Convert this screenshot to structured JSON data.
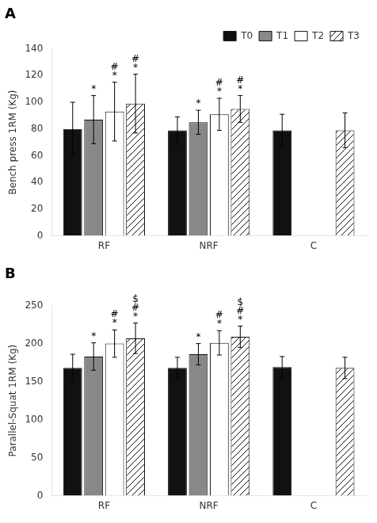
{
  "chart_data": [
    {
      "type": "bar",
      "title": "A",
      "y_label": "Bench press 1RM (Kg)",
      "categories": [
        "RF",
        "NRF",
        "C"
      ],
      "series": [
        {
          "name": "T0",
          "color": "#111111",
          "values": [
            80,
            79,
            79
          ],
          "errors": [
            20,
            10,
            12
          ]
        },
        {
          "name": "T1",
          "color": "#888888",
          "values": [
            87,
            85,
            null
          ],
          "errors": [
            18,
            9,
            null
          ]
        },
        {
          "name": "T2",
          "color": "#ffffff",
          "values": [
            93,
            91,
            null
          ],
          "errors": [
            22,
            12,
            null
          ]
        },
        {
          "name": "T3",
          "color": "#ffffff",
          "values": [
            99,
            95,
            79
          ],
          "errors": [
            22,
            10,
            13
          ]
        }
      ],
      "annotations": [
        {
          "category": "RF",
          "series": "T1",
          "text": [
            "*"
          ]
        },
        {
          "category": "RF",
          "series": "T2",
          "text": [
            "#",
            "*"
          ]
        },
        {
          "category": "RF",
          "series": "T3",
          "text": [
            "#",
            "*"
          ]
        },
        {
          "category": "NRF",
          "series": "T1",
          "text": [
            "*"
          ]
        },
        {
          "category": "NRF",
          "series": "T2",
          "text": [
            "#",
            "*"
          ]
        },
        {
          "category": "NRF",
          "series": "T3",
          "text": [
            "#",
            "*"
          ]
        }
      ],
      "ylim": [
        0,
        140
      ],
      "yticks": [
        0,
        20,
        40,
        60,
        80,
        100,
        120,
        140
      ],
      "grid": false,
      "legend": "upper right"
    },
    {
      "type": "bar",
      "title": "B",
      "y_label": "Parallel-Squat 1RM (Kg)",
      "categories": [
        "RF",
        "NRF",
        "C"
      ],
      "series": [
        {
          "name": "T0",
          "color": "#111111",
          "values": [
            168,
            168,
            169
          ],
          "errors": [
            18,
            14,
            14
          ]
        },
        {
          "name": "T1",
          "color": "#888888",
          "values": [
            183,
            186,
            null
          ],
          "errors": [
            18,
            14,
            null
          ]
        },
        {
          "name": "T2",
          "color": "#ffffff",
          "values": [
            200,
            201,
            null
          ],
          "errors": [
            18,
            16,
            null
          ]
        },
        {
          "name": "T3",
          "color": "#ffffff",
          "values": [
            207,
            209,
            168
          ],
          "errors": [
            20,
            14,
            14
          ]
        }
      ],
      "annotations": [
        {
          "category": "RF",
          "series": "T1",
          "text": [
            "*"
          ]
        },
        {
          "category": "RF",
          "series": "T2",
          "text": [
            "#",
            "*"
          ]
        },
        {
          "category": "RF",
          "series": "T3",
          "text": [
            "$",
            "#",
            "*"
          ]
        },
        {
          "category": "NRF",
          "series": "T1",
          "text": [
            "*"
          ]
        },
        {
          "category": "NRF",
          "series": "T2",
          "text": [
            "#",
            "*"
          ]
        },
        {
          "category": "NRF",
          "series": "T3",
          "text": [
            "$",
            "#",
            "*"
          ]
        }
      ],
      "ylim": [
        0,
        250
      ],
      "yticks": [
        0,
        50,
        100,
        150,
        200,
        250
      ],
      "grid": false
    }
  ]
}
